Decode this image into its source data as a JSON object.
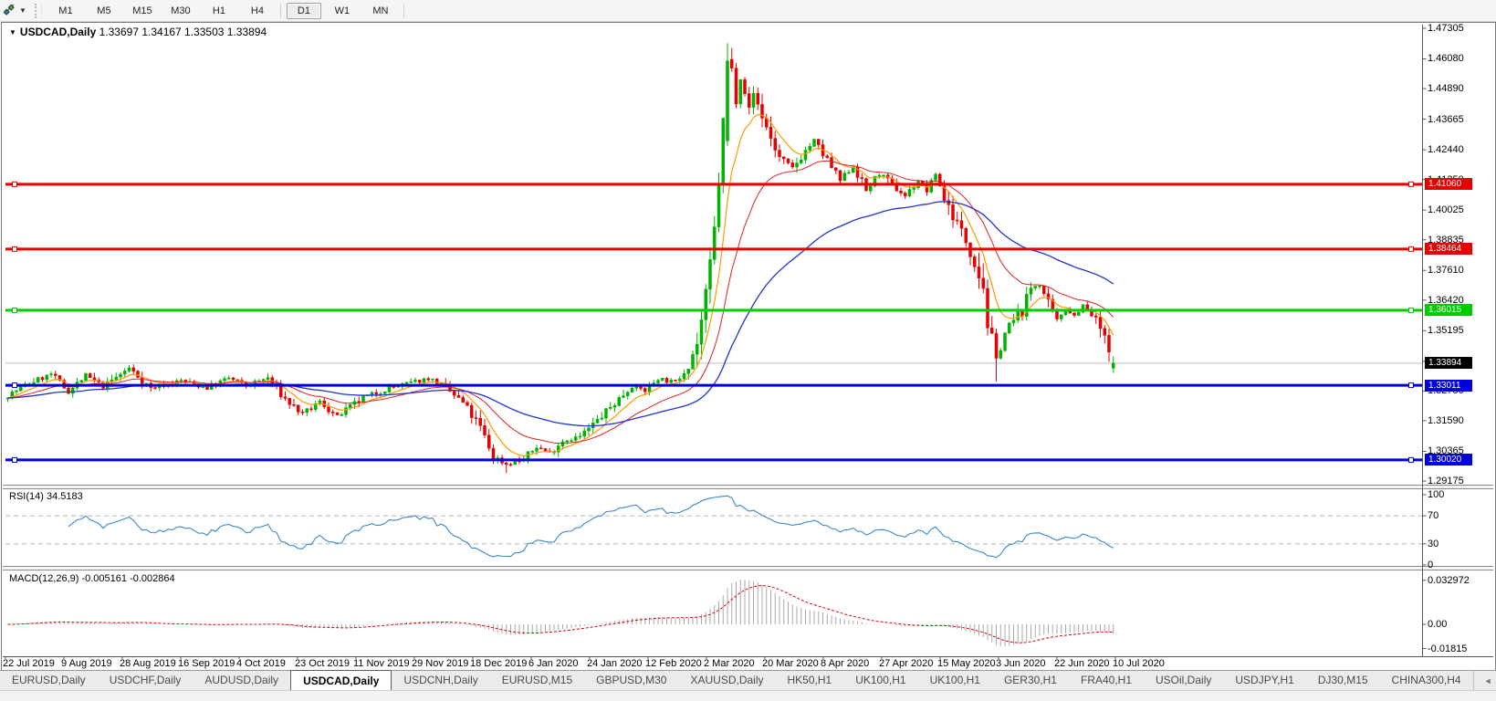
{
  "toolbar": {
    "tool_icon": "line-studies-icon",
    "dropdown_caret": "▼",
    "timeframes": [
      "M1",
      "M5",
      "M15",
      "M30",
      "H1",
      "H4",
      "D1",
      "W1",
      "MN"
    ],
    "active_timeframe": "D1",
    "separators_after": [
      "H4",
      "MN"
    ]
  },
  "chart": {
    "title_caret": "▼",
    "title_symbol": "USDCAD,Daily",
    "title_ohlc": "1.33697 1.34167 1.33503 1.33894",
    "rsi_label": "RSI(14) 34.5183",
    "macd_label": "MACD(12,26,9) -0.005161 -0.002864"
  },
  "chart_data": {
    "type": "candlestick",
    "symbol": "USDCAD",
    "timeframe": "Daily",
    "title": "USDCAD,Daily",
    "ohlc_display": {
      "open": "1.33697",
      "high": "1.34167",
      "low": "1.33503",
      "close": "1.33894"
    },
    "x_labels": [
      "22 Jul 2019",
      "9 Aug 2019",
      "28 Aug 2019",
      "16 Sep 2019",
      "4 Oct 2019",
      "23 Oct 2019",
      "11 Nov 2019",
      "29 Nov 2019",
      "18 Dec 2019",
      "6 Jan 2020",
      "24 Jan 2020",
      "12 Feb 2020",
      "2 Mar 2020",
      "20 Mar 2020",
      "8 Apr 2020",
      "27 Apr 2020",
      "15 May 2020",
      "3 Jun 2020",
      "22 Jun 2020",
      "10 Jul 2020"
    ],
    "y_axis": {
      "range": [
        1.2903,
        1.4745
      ],
      "ticks": [
        "1.47305",
        "1.46080",
        "1.44890",
        "1.43665",
        "1.42440",
        "1.41250",
        "1.40025",
        "1.38835",
        "1.37610",
        "1.36420",
        "1.35195",
        "1.33970",
        "1.32780",
        "1.31590",
        "1.30365",
        "1.29175"
      ]
    },
    "levels": [
      {
        "price": 1.4106,
        "label": "1.41060",
        "color": "#e80000",
        "type": "resistance"
      },
      {
        "price": 1.38464,
        "label": "1.38464",
        "color": "#e80000",
        "type": "resistance"
      },
      {
        "price": 1.36015,
        "label": "1.36015",
        "color": "#00cc00",
        "type": "pivot"
      },
      {
        "price": 1.33011,
        "label": "1.33011",
        "color": "#0000d8",
        "type": "support"
      },
      {
        "price": 1.3002,
        "label": "1.30020",
        "color": "#0000d8",
        "type": "support"
      }
    ],
    "current_price": {
      "value": 1.33894,
      "label": "1.33894",
      "line_color": "#bdbdbd",
      "chip_bg": "#000000"
    },
    "bars": 256,
    "candle_up_color": "#00b300",
    "candle_down_color": "#e60000",
    "price_path": [
      [
        0,
        1.326
      ],
      [
        5,
        1.331
      ],
      [
        10,
        1.3345
      ],
      [
        14,
        1.3275
      ],
      [
        18,
        1.334
      ],
      [
        22,
        1.3295
      ],
      [
        28,
        1.337
      ],
      [
        33,
        1.329
      ],
      [
        40,
        1.332
      ],
      [
        46,
        1.329
      ],
      [
        51,
        1.333
      ],
      [
        55,
        1.33
      ],
      [
        60,
        1.333
      ],
      [
        64,
        1.3245
      ],
      [
        68,
        1.3185
      ],
      [
        72,
        1.3235
      ],
      [
        76,
        1.3175
      ],
      [
        82,
        1.325
      ],
      [
        88,
        1.329
      ],
      [
        94,
        1.3315
      ],
      [
        97,
        1.333
      ],
      [
        101,
        1.329
      ],
      [
        105,
        1.323
      ],
      [
        109,
        1.313
      ],
      [
        112,
        1.3015
      ],
      [
        115,
        1.2985
      ],
      [
        119,
        1.3005
      ],
      [
        122,
        1.3055
      ],
      [
        125,
        1.303
      ],
      [
        128,
        1.308
      ],
      [
        132,
        1.3095
      ],
      [
        136,
        1.316
      ],
      [
        140,
        1.323
      ],
      [
        144,
        1.33
      ],
      [
        147,
        1.328
      ],
      [
        150,
        1.333
      ],
      [
        154,
        1.331
      ],
      [
        157,
        1.339
      ],
      [
        159,
        1.347
      ],
      [
        160,
        1.356
      ],
      [
        161,
        1.365
      ],
      [
        162,
        1.378
      ],
      [
        163,
        1.392
      ],
      [
        164,
        1.412
      ],
      [
        165,
        1.435
      ],
      [
        166,
        1.46
      ],
      [
        167,
        1.456
      ],
      [
        168,
        1.445
      ],
      [
        169,
        1.455
      ],
      [
        171,
        1.44
      ],
      [
        172,
        1.447
      ],
      [
        174,
        1.438
      ],
      [
        176,
        1.429
      ],
      [
        178,
        1.421
      ],
      [
        181,
        1.417
      ],
      [
        184,
        1.424
      ],
      [
        186,
        1.428
      ],
      [
        189,
        1.42
      ],
      [
        192,
        1.412
      ],
      [
        195,
        1.418
      ],
      [
        198,
        1.408
      ],
      [
        201,
        1.415
      ],
      [
        204,
        1.41
      ],
      [
        207,
        1.406
      ],
      [
        210,
        1.412
      ],
      [
        212,
        1.408
      ],
      [
        214,
        1.415
      ],
      [
        216,
        1.405
      ],
      [
        219,
        1.395
      ],
      [
        221,
        1.388
      ],
      [
        223,
        1.38
      ],
      [
        225,
        1.37
      ],
      [
        226,
        1.355
      ],
      [
        228,
        1.34
      ],
      [
        230,
        1.351
      ],
      [
        232,
        1.356
      ],
      [
        234,
        1.36
      ],
      [
        236,
        1.369
      ],
      [
        238,
        1.371
      ],
      [
        240,
        1.362
      ],
      [
        242,
        1.356
      ],
      [
        244,
        1.361
      ],
      [
        246,
        1.358
      ],
      [
        248,
        1.362
      ],
      [
        250,
        1.358
      ],
      [
        252,
        1.353
      ],
      [
        253,
        1.348
      ],
      [
        254,
        1.343
      ],
      [
        255,
        1.3389
      ]
    ],
    "last_bar": {
      "open": 1.33697,
      "high": 1.34167,
      "low": 1.33503,
      "close": 1.33894
    },
    "extremes": {
      "rally_high_bar": 166,
      "rally_high": 1.467,
      "dec_low_bar": 115,
      "dec_low": 1.295,
      "jun_low_bar": 228,
      "jun_low": 1.3315
    },
    "moving_averages": [
      {
        "name": "ma-fast",
        "period": 8,
        "color": "#ff9900"
      },
      {
        "name": "ma-mid",
        "period": 21,
        "color": "#dd2222"
      },
      {
        "name": "ma-slow",
        "period": 55,
        "color": "#2233cc"
      }
    ],
    "rsi": {
      "period": 14,
      "current": 34.5183,
      "levels": [
        70,
        30
      ],
      "scale_labels": [
        "100",
        "70",
        "30",
        "0"
      ],
      "scale_values": [
        100,
        70,
        30,
        0
      ],
      "color": "#3a87c8",
      "level_line_color": "#b5b5b5"
    },
    "macd": {
      "fast": 12,
      "slow": 26,
      "signal_period": 9,
      "current_main": -0.005161,
      "current_signal": -0.002864,
      "scale_labels": [
        "0.032972",
        "0.00",
        "-0.01815"
      ],
      "scale_values": [
        0.032972,
        0,
        -0.01815
      ],
      "histogram_color": "#a8a8a8",
      "signal_color": "#e00000"
    }
  },
  "tabs": {
    "items": [
      "EURUSD,Daily",
      "USDCHF,Daily",
      "AUDUSD,Daily",
      "USDCAD,Daily",
      "USDCNH,Daily",
      "EURUSD,M15",
      "GBPUSD,M30",
      "XAUUSD,Daily",
      "HK50,H1",
      "UK100,H1",
      "UK100,H1",
      "GER30,H1",
      "FRA40,H1",
      "USOil,Daily",
      "USDJPY,H1",
      "DJ30,M15",
      "CHINA300,H4"
    ],
    "active_index": 3,
    "scroll_left": "◄",
    "scroll_right": "►"
  },
  "colors": {
    "accent_red": "#e80000",
    "accent_green": "#00cc00",
    "accent_blue": "#0000d8",
    "candle_up": "#00b300",
    "candle_down": "#e60000"
  }
}
